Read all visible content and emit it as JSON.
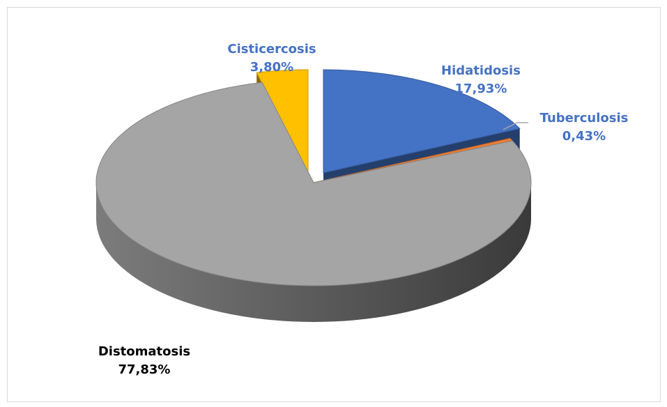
{
  "chart_data": {
    "type": "pie3d",
    "categories": [
      "Hidatidosis",
      "Tuberculosis",
      "Distomatosis",
      "Cisticercosis"
    ],
    "values": [
      17.93,
      0.43,
      77.83,
      3.8
    ],
    "value_labels": [
      "17,93%",
      "0,43%",
      "77,83%",
      "3,80%"
    ],
    "colors": [
      "#4472c4",
      "#ed7d31",
      "#a5a5a5",
      "#ffc000"
    ]
  }
}
